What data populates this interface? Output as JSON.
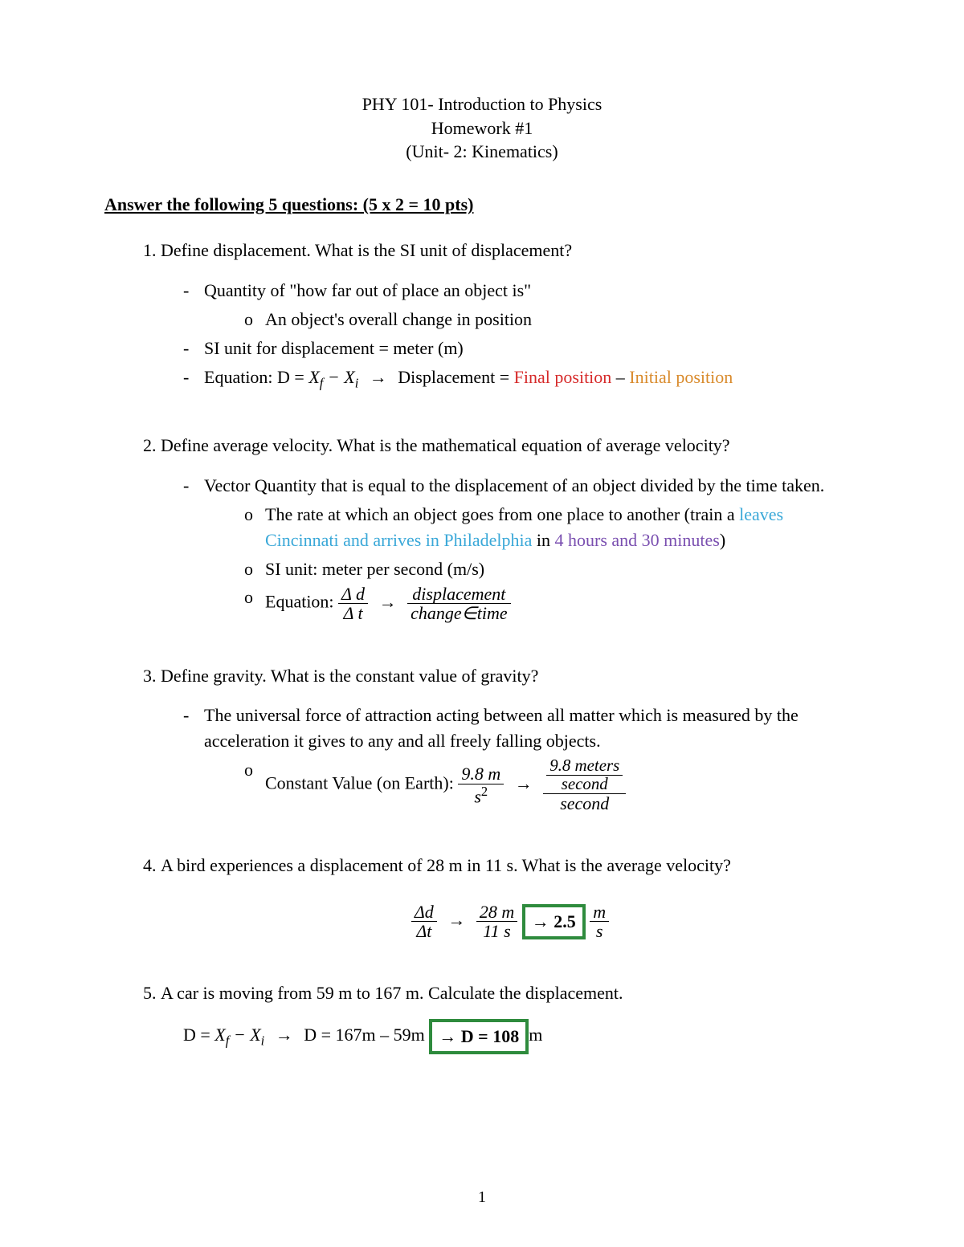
{
  "colors": {
    "red": "#d62a2a",
    "orange": "#d98a2b",
    "skyblue": "#3aa8d8",
    "purple": "#7a4fb0",
    "green": "#2e8b3d"
  },
  "header": {
    "line1": "PHY 101- Introduction to Physics",
    "line2": "Homework #1",
    "line3": "(Unit- 2: Kinematics)"
  },
  "sectionHeading": "Answer the following 5 questions:   (5 x 2 = 10 pts)",
  "q1": {
    "prompt": "Define displacement. What is the SI unit of displacement?",
    "b1": "Quantity of \"how far out of place an object is\"",
    "b1a": "An object's overall change in position",
    "b2": "SI unit for displacement = meter (m)",
    "b3_pre": "Equation: D =   ",
    "b3_xf": "X",
    "b3_f": "f",
    "b3_minus": " − ",
    "b3_xi": "X",
    "b3_i": "i",
    "b3_arrow": "  →  ",
    "b3_disp": "Displacement = ",
    "b3_final": "Final position",
    "b3_dash": " – ",
    "b3_initial": "Initial position"
  },
  "q2": {
    "prompt": "Define average velocity. What is the mathematical equation of average velocity?",
    "b1": "Vector Quantity that is equal to the displacement of an object divided by the time taken.",
    "b1a_pre": "The rate at which an object goes from one place to another (train a ",
    "b1a_sky": "leaves Cincinnati and arrives in Philadelphia",
    "b1a_mid": " in ",
    "b1a_purple": "4 hours and 30 minutes",
    "b1a_post": ")",
    "b1b": "SI unit: meter per second (m/s)",
    "b1c_label": "Equation:   ",
    "frac1_num": "Δ d",
    "frac1_den": "Δ t",
    "arrow": "→",
    "frac2_num": "displacement",
    "frac2_den": "change∈time"
  },
  "q3": {
    "prompt": "Define gravity. What is the constant value of gravity?",
    "b1": "The universal force of attraction acting between all matter which is measured by the acceleration it gives to any and all freely falling objects.",
    "b1a_label": "Constant Value (on Earth):   ",
    "frac1_num": "9.8 m",
    "frac1_den_s": "s",
    "frac1_den_2": "2",
    "arrow": "→",
    "frac2_top_num": "9.8 meters",
    "frac2_top_den": "second",
    "frac2_bottom": "second"
  },
  "q4": {
    "prompt": "A bird experiences a displacement of 28 m in 11 s. What is the average velocity?",
    "frac1_num": "Δd",
    "frac1_den": "Δt",
    "arrow1": "→",
    "frac2_num": "28 m",
    "frac2_den": "11 s",
    "box": "→ 2.5",
    "frac3_num": "m",
    "frac3_den": "s"
  },
  "q5": {
    "prompt": "A car is moving from 59 m to 167 m. Calculate the displacement.",
    "pre": "D =   ",
    "xf": "X",
    "f": "f",
    "minus": " − ",
    "xi": "X",
    "i": "i",
    "arrow1": "  → ",
    "mid": "D = 167m – 59m",
    "box": "→ D = 108",
    "post": "m"
  },
  "pageNumber": "1"
}
